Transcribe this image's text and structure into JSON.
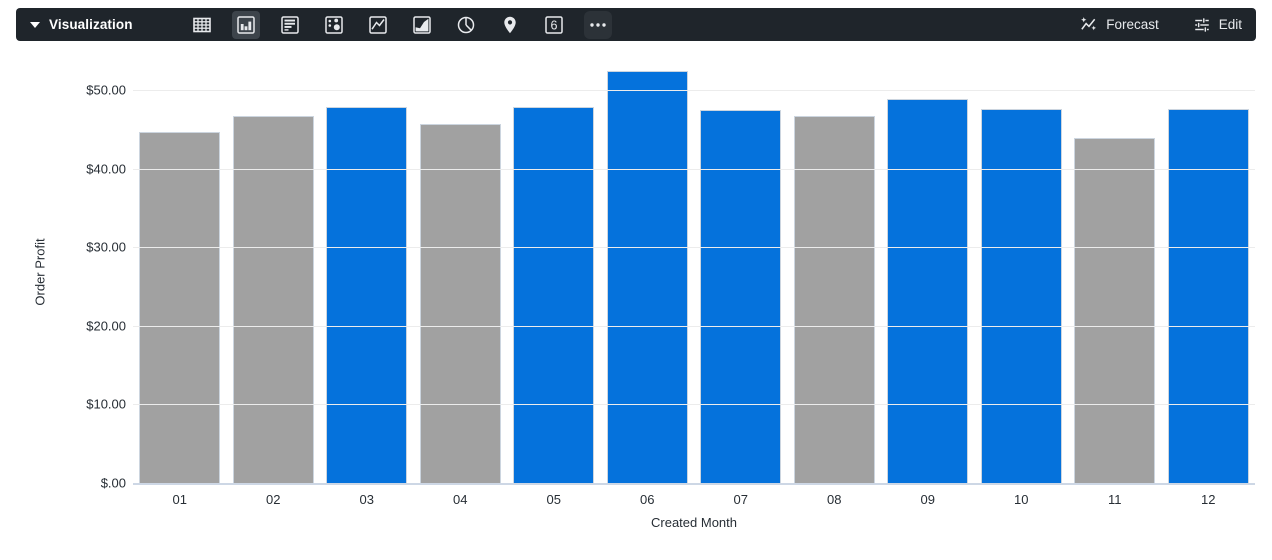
{
  "toolbar": {
    "visualization_label": "Visualization",
    "chart_types": [
      {
        "name": "table",
        "selected": false
      },
      {
        "name": "column",
        "selected": true
      },
      {
        "name": "bar",
        "selected": false
      },
      {
        "name": "scatter",
        "selected": false
      },
      {
        "name": "line",
        "selected": false
      },
      {
        "name": "area",
        "selected": false
      },
      {
        "name": "pie",
        "selected": false
      },
      {
        "name": "map",
        "selected": false
      },
      {
        "name": "single-value",
        "selected": false
      },
      {
        "name": "more",
        "selected": false
      }
    ],
    "single_value_number": "6",
    "forecast_label": "Forecast",
    "edit_label": "Edit"
  },
  "colors": {
    "toolbar_bg": "#1f252b",
    "selected_icon_bg": "#3d444b",
    "icon_color": "#e8eaed",
    "blue": "#0572dc",
    "gray": "#a1a1a1",
    "gridline": "#ececec",
    "baseline": "#cdd7e5",
    "axis_text": "#272e35"
  },
  "chart_data": {
    "type": "bar",
    "title": "",
    "xlabel": "Created Month",
    "ylabel": "Order Profit",
    "categories": [
      "01",
      "02",
      "03",
      "04",
      "05",
      "06",
      "07",
      "08",
      "09",
      "10",
      "11",
      "12"
    ],
    "values": [
      44.7,
      46.7,
      47.8,
      45.7,
      47.8,
      52.4,
      47.4,
      46.7,
      48.8,
      47.6,
      43.9,
      47.6
    ],
    "bar_colors": [
      "gray",
      "gray",
      "blue",
      "gray",
      "blue",
      "blue",
      "blue",
      "gray",
      "blue",
      "blue",
      "gray",
      "blue"
    ],
    "ylim": [
      0,
      50
    ],
    "grid": true,
    "legend": "none",
    "yticks": [
      {
        "label": "$.00",
        "value": 0
      },
      {
        "label": "$10.00",
        "value": 10
      },
      {
        "label": "$20.00",
        "value": 20
      },
      {
        "label": "$30.00",
        "value": 30
      },
      {
        "label": "$40.00",
        "value": 40
      },
      {
        "label": "$50.00",
        "value": 50
      }
    ]
  }
}
